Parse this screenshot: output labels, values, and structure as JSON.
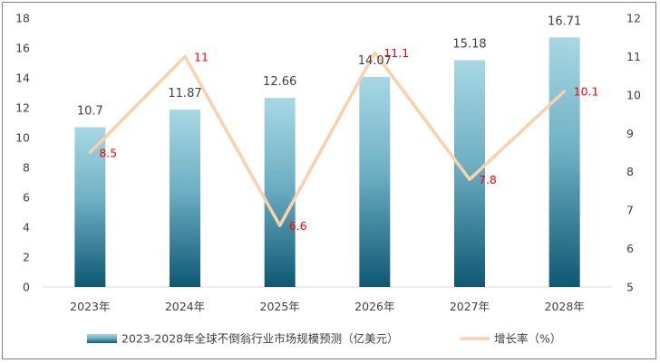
{
  "chart_data": {
    "type": "bar",
    "categories": [
      "2023年",
      "2024年",
      "2025年",
      "2026年",
      "2027年",
      "2028年"
    ],
    "series": [
      {
        "name": "2023-2028年全球不倒翁行业市场规模预测（亿美元）",
        "type": "bar",
        "axis": "left",
        "values": [
          10.7,
          11.87,
          12.66,
          14.07,
          15.18,
          16.71
        ],
        "labels": [
          "10.7",
          "11.87",
          "12.66",
          "14.07",
          "15.18",
          "16.71"
        ]
      },
      {
        "name": "增长率（%）",
        "type": "line",
        "axis": "right",
        "values": [
          8.5,
          11,
          6.6,
          11.1,
          7.8,
          10.1
        ],
        "labels": [
          "8.5",
          "11",
          "6.6",
          "11.1",
          "7.8",
          "10.1"
        ]
      }
    ],
    "left_axis": {
      "min": 0,
      "max": 18,
      "ticks": [
        "0",
        "2",
        "4",
        "6",
        "8",
        "10",
        "12",
        "14",
        "16",
        "18"
      ]
    },
    "right_axis": {
      "min": 5,
      "max": 12,
      "ticks": [
        "5",
        "6",
        "7",
        "8",
        "9",
        "10",
        "11",
        "12"
      ]
    },
    "legend_position": "bottom",
    "grid": false,
    "colors": {
      "bar_top": "#a8d8e4",
      "bar_bottom": "#0e5874",
      "line": "#fbd0ac",
      "line_label": "#ff0000",
      "bar_label": "#404040",
      "axis_text": "#404040"
    }
  }
}
